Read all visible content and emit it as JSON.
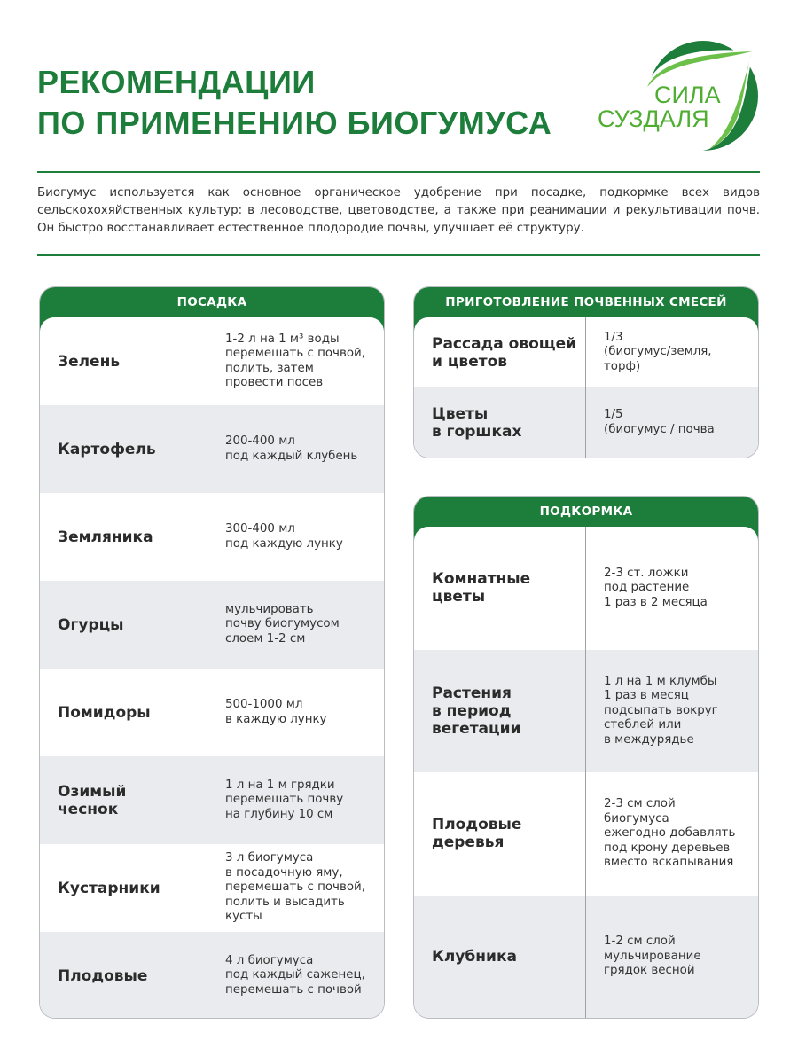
{
  "header": {
    "title_line1": "РЕКОМЕНДАЦИИ",
    "title_line2": "ПО ПРИМЕНЕНИЮ БИОГУМУСА",
    "logo_text": [
      "СИЛА",
      "СУЗДАЛЯ"
    ],
    "brand_color": "#1d7d3a"
  },
  "intro": "Биогумус используется как основное органическое удобрение при посадке, подкормке всех видов сельскохохяйственных культур: в лесоводстве, цветоводстве, а также при реанимации и рекультивации почв. Он быстро восстанавливает естественное плодородие почвы, улучшает её структуру.",
  "planting": {
    "title": "ПОСАДКА",
    "rows": [
      {
        "name": "Зелень",
        "value": "1-2 л на 1 м³ воды\nперемешать с почвой,\nполить, затем\nпровести посев"
      },
      {
        "name": "Картофель",
        "value": "200-400 мл\nпод каждый клубень"
      },
      {
        "name": "Земляника",
        "value": "300-400 мл\nпод каждую лунку"
      },
      {
        "name": "Огурцы",
        "value": "мульчировать\nпочву биогумусом\nслоем 1-2 см"
      },
      {
        "name": "Помидоры",
        "value": "500-1000 мл\nв каждую лунку"
      },
      {
        "name": "Озимый\nчеснок",
        "value": "1 л на 1 м грядки\nперемешать почву\nна глубину 10 см"
      },
      {
        "name": "Кустарники",
        "value": "3 л биогумуса\nв посадочную яму,\nперемешать с почвой,\nполить и высадить\nкусты"
      },
      {
        "name": "Плодовые",
        "value": "4 л биогумуса\nпод каждый саженец,\nперемешать с почвой"
      }
    ]
  },
  "mixes": {
    "title": "ПРИГОТОВЛЕНИЕ ПОЧВЕННЫХ СМЕСЕЙ",
    "rows": [
      {
        "name": "Рассада овощей\nи цветов",
        "value": "1/3\n(биогумус/земля,\nторф)"
      },
      {
        "name": "Цветы\nв горшках",
        "value": "1/5\n(биогумус / почва"
      }
    ]
  },
  "feeding": {
    "title": "ПОДКОРМКА",
    "rows": [
      {
        "name": "Комнатные\nцветы",
        "value": "2-3 ст. ложки\nпод растение\n1 раз в 2 месяца"
      },
      {
        "name": "Растения\nв период\nвегетации",
        "value": "1 л на 1 м клумбы\n1 раз в месяц\nподсыпать вокруг\nстеблей или\nв междурядье"
      },
      {
        "name": "Плодовые\nдеревья",
        "value": "2-3 см слой\nбиогумуса\nежегодно добавлять\nпод крону деревьев\nвместо вскапывания"
      },
      {
        "name": "Клубника",
        "value": "1-2 см слой\nмульчирование\nгрядок весной"
      }
    ]
  }
}
